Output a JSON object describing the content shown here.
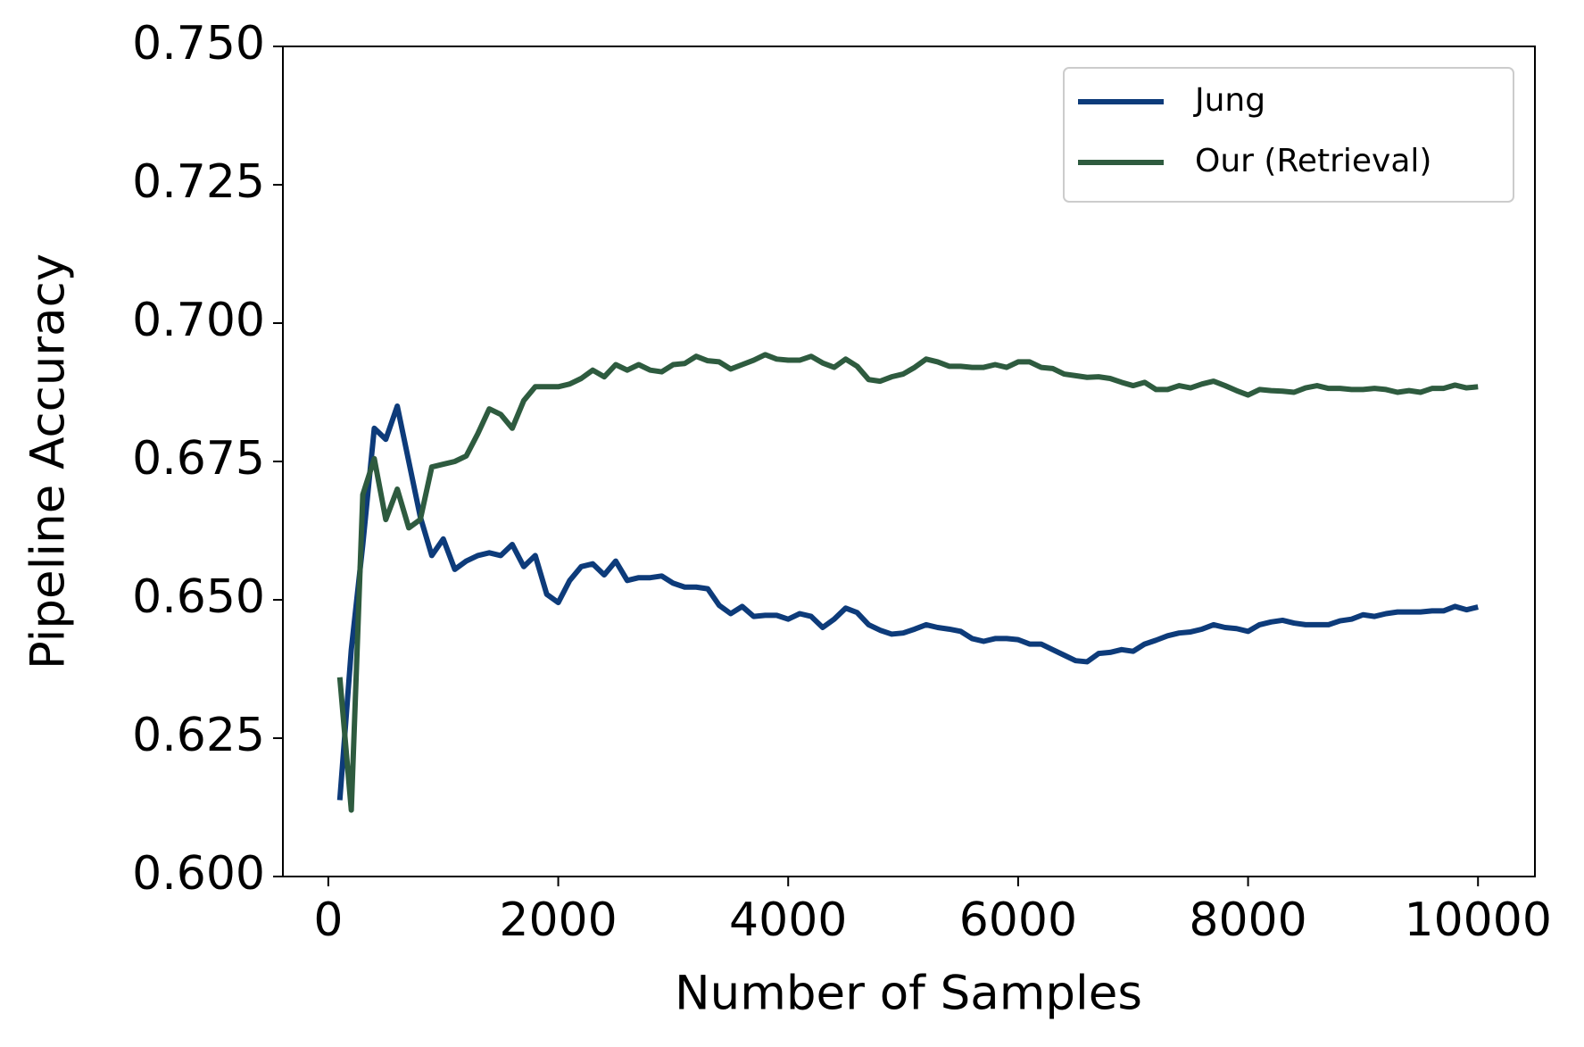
{
  "chart_data": {
    "type": "line",
    "xlabel": "Number of Samples",
    "ylabel": "Pipeline Accuracy",
    "x": [
      100,
      200,
      300,
      400,
      500,
      600,
      700,
      800,
      900,
      1000,
      1100,
      1200,
      1300,
      1400,
      1500,
      1600,
      1700,
      1800,
      1900,
      2000,
      2100,
      2200,
      2300,
      2400,
      2500,
      2600,
      2700,
      2800,
      2900,
      3000,
      3100,
      3200,
      3300,
      3400,
      3500,
      3600,
      3700,
      3800,
      3900,
      4000,
      4100,
      4200,
      4300,
      4400,
      4500,
      4600,
      4700,
      4800,
      4900,
      5000,
      5100,
      5200,
      5300,
      5400,
      5500,
      5600,
      5700,
      5800,
      5900,
      6000,
      6100,
      6200,
      6300,
      6400,
      6500,
      6600,
      6700,
      6800,
      6900,
      7000,
      7100,
      7200,
      7300,
      7400,
      7500,
      7600,
      7700,
      7800,
      7900,
      8000,
      8100,
      8200,
      8300,
      8400,
      8500,
      8600,
      8700,
      8800,
      8900,
      9000,
      9100,
      9200,
      9300,
      9400,
      9500,
      9600,
      9700,
      9800,
      9900,
      10000
    ],
    "series": [
      {
        "name": "Jung",
        "color": "#0d3b7a",
        "values": [
          0.6138,
          0.641,
          0.66,
          0.681,
          0.679,
          0.685,
          0.675,
          0.665,
          0.658,
          0.661,
          0.6555,
          0.657,
          0.658,
          0.6585,
          0.658,
          0.66,
          0.656,
          0.658,
          0.651,
          0.6495,
          0.6535,
          0.656,
          0.6565,
          0.6545,
          0.657,
          0.6535,
          0.654,
          0.654,
          0.6543,
          0.653,
          0.6523,
          0.6523,
          0.652,
          0.649,
          0.6475,
          0.6488,
          0.647,
          0.6472,
          0.6472,
          0.6465,
          0.6475,
          0.647,
          0.645,
          0.6465,
          0.6485,
          0.6477,
          0.6455,
          0.6445,
          0.6438,
          0.644,
          0.6447,
          0.6455,
          0.645,
          0.6447,
          0.6443,
          0.643,
          0.6425,
          0.643,
          0.643,
          0.6428,
          0.642,
          0.642,
          0.641,
          0.64,
          0.639,
          0.6388,
          0.6403,
          0.6405,
          0.641,
          0.6407,
          0.642,
          0.6427,
          0.6435,
          0.644,
          0.6442,
          0.6447,
          0.6455,
          0.645,
          0.6448,
          0.6443,
          0.6455,
          0.646,
          0.6463,
          0.6458,
          0.6455,
          0.6455,
          0.6455,
          0.6462,
          0.6465,
          0.6473,
          0.647,
          0.6475,
          0.6478,
          0.6478,
          0.6478,
          0.648,
          0.648,
          0.6488,
          0.6482,
          0.6487
        ]
      },
      {
        "name": "Our (Retrieval)",
        "color": "#2e5b3f",
        "values": [
          0.636,
          0.612,
          0.669,
          0.6755,
          0.6645,
          0.67,
          0.663,
          0.6645,
          0.674,
          0.6745,
          0.675,
          0.676,
          0.68,
          0.6845,
          0.6835,
          0.681,
          0.686,
          0.6885,
          0.6885,
          0.6885,
          0.689,
          0.69,
          0.6915,
          0.6903,
          0.6925,
          0.6915,
          0.6925,
          0.6915,
          0.6912,
          0.6925,
          0.6927,
          0.694,
          0.6932,
          0.693,
          0.6917,
          0.6925,
          0.6933,
          0.6943,
          0.6935,
          0.6933,
          0.6933,
          0.694,
          0.6928,
          0.692,
          0.6935,
          0.6922,
          0.6898,
          0.6895,
          0.6903,
          0.6908,
          0.692,
          0.6935,
          0.693,
          0.6922,
          0.6922,
          0.692,
          0.692,
          0.6925,
          0.692,
          0.693,
          0.693,
          0.692,
          0.6918,
          0.6908,
          0.6905,
          0.6902,
          0.6903,
          0.69,
          0.6893,
          0.6887,
          0.6893,
          0.688,
          0.688,
          0.6887,
          0.6883,
          0.689,
          0.6895,
          0.6887,
          0.6878,
          0.687,
          0.688,
          0.6878,
          0.6877,
          0.6875,
          0.6883,
          0.6887,
          0.6882,
          0.6882,
          0.688,
          0.688,
          0.6882,
          0.688,
          0.6875,
          0.6878,
          0.6875,
          0.6882,
          0.6882,
          0.6888,
          0.6883,
          0.6885
        ]
      }
    ],
    "xlim": [
      -395,
      10495
    ],
    "xticks": [
      0,
      2000,
      4000,
      6000,
      8000,
      10000
    ],
    "ylim": [
      0.6,
      0.75
    ],
    "yticks": [
      {
        "value": 0.6,
        "label": "0.600"
      },
      {
        "value": 0.625,
        "label": "0.625"
      },
      {
        "value": 0.65,
        "label": "0.650"
      },
      {
        "value": 0.675,
        "label": "0.675"
      },
      {
        "value": 0.7,
        "label": "0.700"
      },
      {
        "value": 0.725,
        "label": "0.725"
      },
      {
        "value": 0.75,
        "label": "0.750"
      }
    ],
    "grid": false,
    "legend": "upper right"
  }
}
